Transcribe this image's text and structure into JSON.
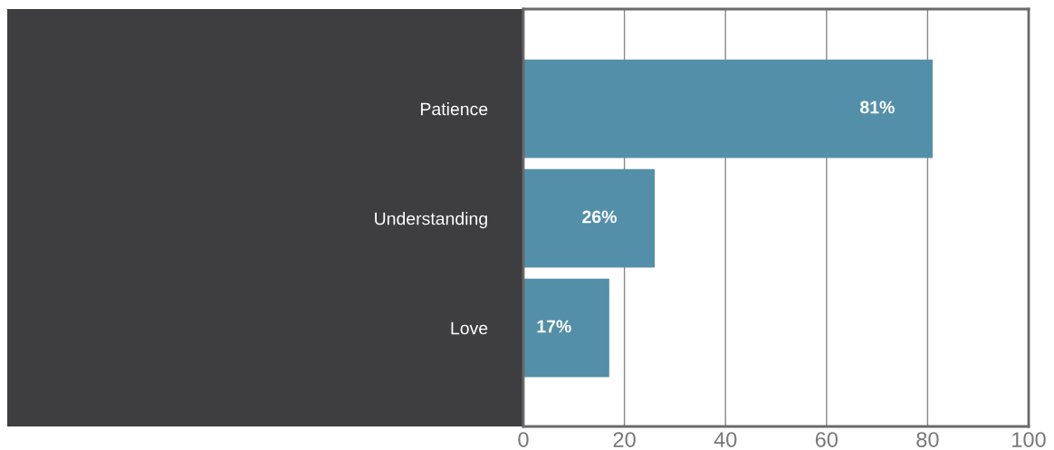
{
  "chart_data": {
    "type": "bar",
    "orientation": "horizontal",
    "categories": [
      "Patience",
      "Understanding",
      "Love"
    ],
    "values": [
      81,
      26,
      17
    ],
    "value_labels": [
      "81%",
      "26%",
      "17%"
    ],
    "color": "#548fa9",
    "xlim": [
      0,
      100
    ],
    "xticks": [
      0,
      20,
      40,
      60,
      80,
      100
    ],
    "grid": "x",
    "legend": false
  }
}
